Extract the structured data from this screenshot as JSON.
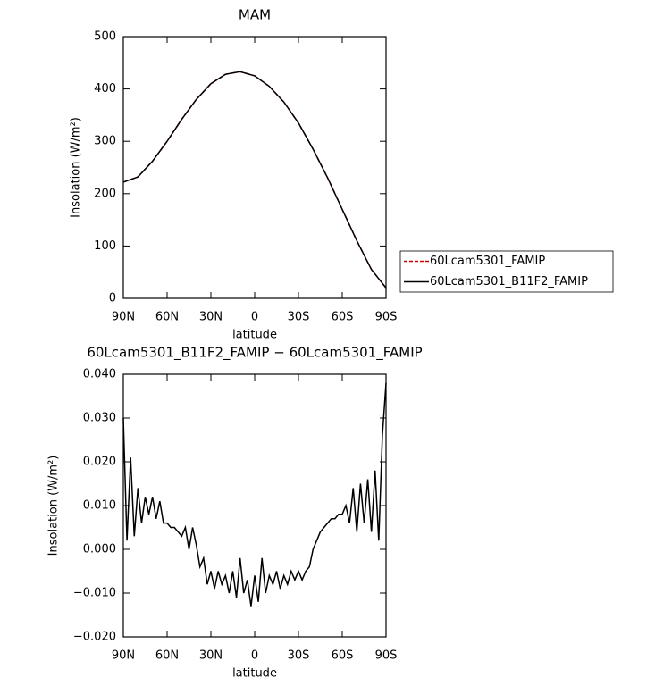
{
  "chart_data": [
    {
      "type": "line",
      "title": "MAM",
      "xlabel": "latitude",
      "ylabel": "Insolation (W/m²)",
      "x": [
        90,
        80,
        70,
        60,
        50,
        40,
        30,
        20,
        10,
        0,
        -10,
        -20,
        -30,
        -40,
        -50,
        -60,
        -70,
        -80,
        -90
      ],
      "series": [
        {
          "name": "60Lcam5301_FAMIP",
          "color": "#cc0000",
          "dashed": true,
          "values": [
            222,
            232,
            262,
            300,
            342,
            380,
            410,
            428,
            433,
            425,
            405,
            375,
            335,
            285,
            230,
            170,
            110,
            55,
            20
          ]
        },
        {
          "name": "60Lcam5301_B11F2_FAMIP",
          "color": "#000000",
          "dashed": false,
          "values": [
            222,
            232,
            262,
            300,
            342,
            380,
            410,
            428,
            433,
            425,
            405,
            375,
            335,
            285,
            230,
            170,
            110,
            55,
            20
          ]
        }
      ],
      "xlim": [
        90,
        -90
      ],
      "xticks": [
        {
          "value": 90,
          "label": "90N"
        },
        {
          "value": 60,
          "label": "60N"
        },
        {
          "value": 30,
          "label": "30N"
        },
        0,
        {
          "value": -30,
          "label": "30S"
        },
        {
          "value": -60,
          "label": "60S"
        },
        {
          "value": -90,
          "label": "90S"
        }
      ],
      "ylim": [
        0,
        500
      ],
      "yticks": [
        0,
        100,
        200,
        300,
        400,
        500
      ],
      "legend": "right"
    },
    {
      "type": "line",
      "title": "60Lcam5301_B11F2_FAMIP − 60Lcam5301_FAMIP",
      "xlabel": "latitude",
      "ylabel": "Insolation (W/m²)",
      "x": [
        90,
        87.5,
        85,
        82.5,
        80,
        77.5,
        75,
        72.5,
        70,
        67.5,
        65,
        62.5,
        60,
        57.5,
        55,
        52.5,
        50,
        47.5,
        45,
        42.5,
        40,
        37.5,
        35,
        32.5,
        30,
        27.5,
        25,
        22.5,
        20,
        17.5,
        15,
        12.5,
        10,
        7.5,
        5,
        2.5,
        0,
        -2.5,
        -5,
        -7.5,
        -10,
        -12.5,
        -15,
        -17.5,
        -20,
        -22.5,
        -25,
        -27.5,
        -30,
        -32.5,
        -35,
        -37.5,
        -40,
        -42.5,
        -45,
        -47.5,
        -50,
        -52.5,
        -55,
        -57.5,
        -60,
        -62.5,
        -65,
        -67.5,
        -70,
        -72.5,
        -75,
        -77.5,
        -80,
        -82.5,
        -85,
        -87.5,
        -90
      ],
      "series": [
        {
          "name": null,
          "color": "#000000",
          "dashed": false,
          "values": [
            0.03,
            0.002,
            0.021,
            0.003,
            0.014,
            0.006,
            0.012,
            0.008,
            0.012,
            0.007,
            0.011,
            0.006,
            0.006,
            0.005,
            0.005,
            0.004,
            0.003,
            0.005,
            0.0,
            0.005,
            0.001,
            -0.004,
            -0.002,
            -0.008,
            -0.005,
            -0.009,
            -0.005,
            -0.008,
            -0.006,
            -0.01,
            -0.005,
            -0.011,
            -0.002,
            -0.01,
            -0.007,
            -0.013,
            -0.006,
            -0.012,
            -0.002,
            -0.01,
            -0.006,
            -0.008,
            -0.005,
            -0.009,
            -0.006,
            -0.008,
            -0.005,
            -0.007,
            -0.005,
            -0.007,
            -0.005,
            -0.004,
            0.0,
            0.002,
            0.004,
            0.005,
            0.006,
            0.007,
            0.007,
            0.008,
            0.008,
            0.01,
            0.006,
            0.014,
            0.004,
            0.015,
            0.006,
            0.016,
            0.004,
            0.018,
            0.002,
            0.026,
            0.038
          ]
        }
      ],
      "xlim": [
        90,
        -90
      ],
      "xticks": [
        {
          "value": 90,
          "label": "90N"
        },
        {
          "value": 60,
          "label": "60N"
        },
        {
          "value": 30,
          "label": "30N"
        },
        0,
        {
          "value": -30,
          "label": "30S"
        },
        {
          "value": -60,
          "label": "60S"
        },
        {
          "value": -90,
          "label": "90S"
        }
      ],
      "ylim": [
        -0.02,
        0.04
      ],
      "yticks": [
        {
          "value": -0.02,
          "label": "−0.020"
        },
        {
          "value": -0.01,
          "label": "−0.010"
        },
        {
          "value": 0,
          "label": "0.000"
        },
        {
          "value": 0.01,
          "label": "0.010"
        },
        {
          "value": 0.02,
          "label": "0.020"
        },
        {
          "value": 0.03,
          "label": "0.030"
        },
        {
          "value": 0.04,
          "label": "0.040"
        }
      ]
    }
  ]
}
